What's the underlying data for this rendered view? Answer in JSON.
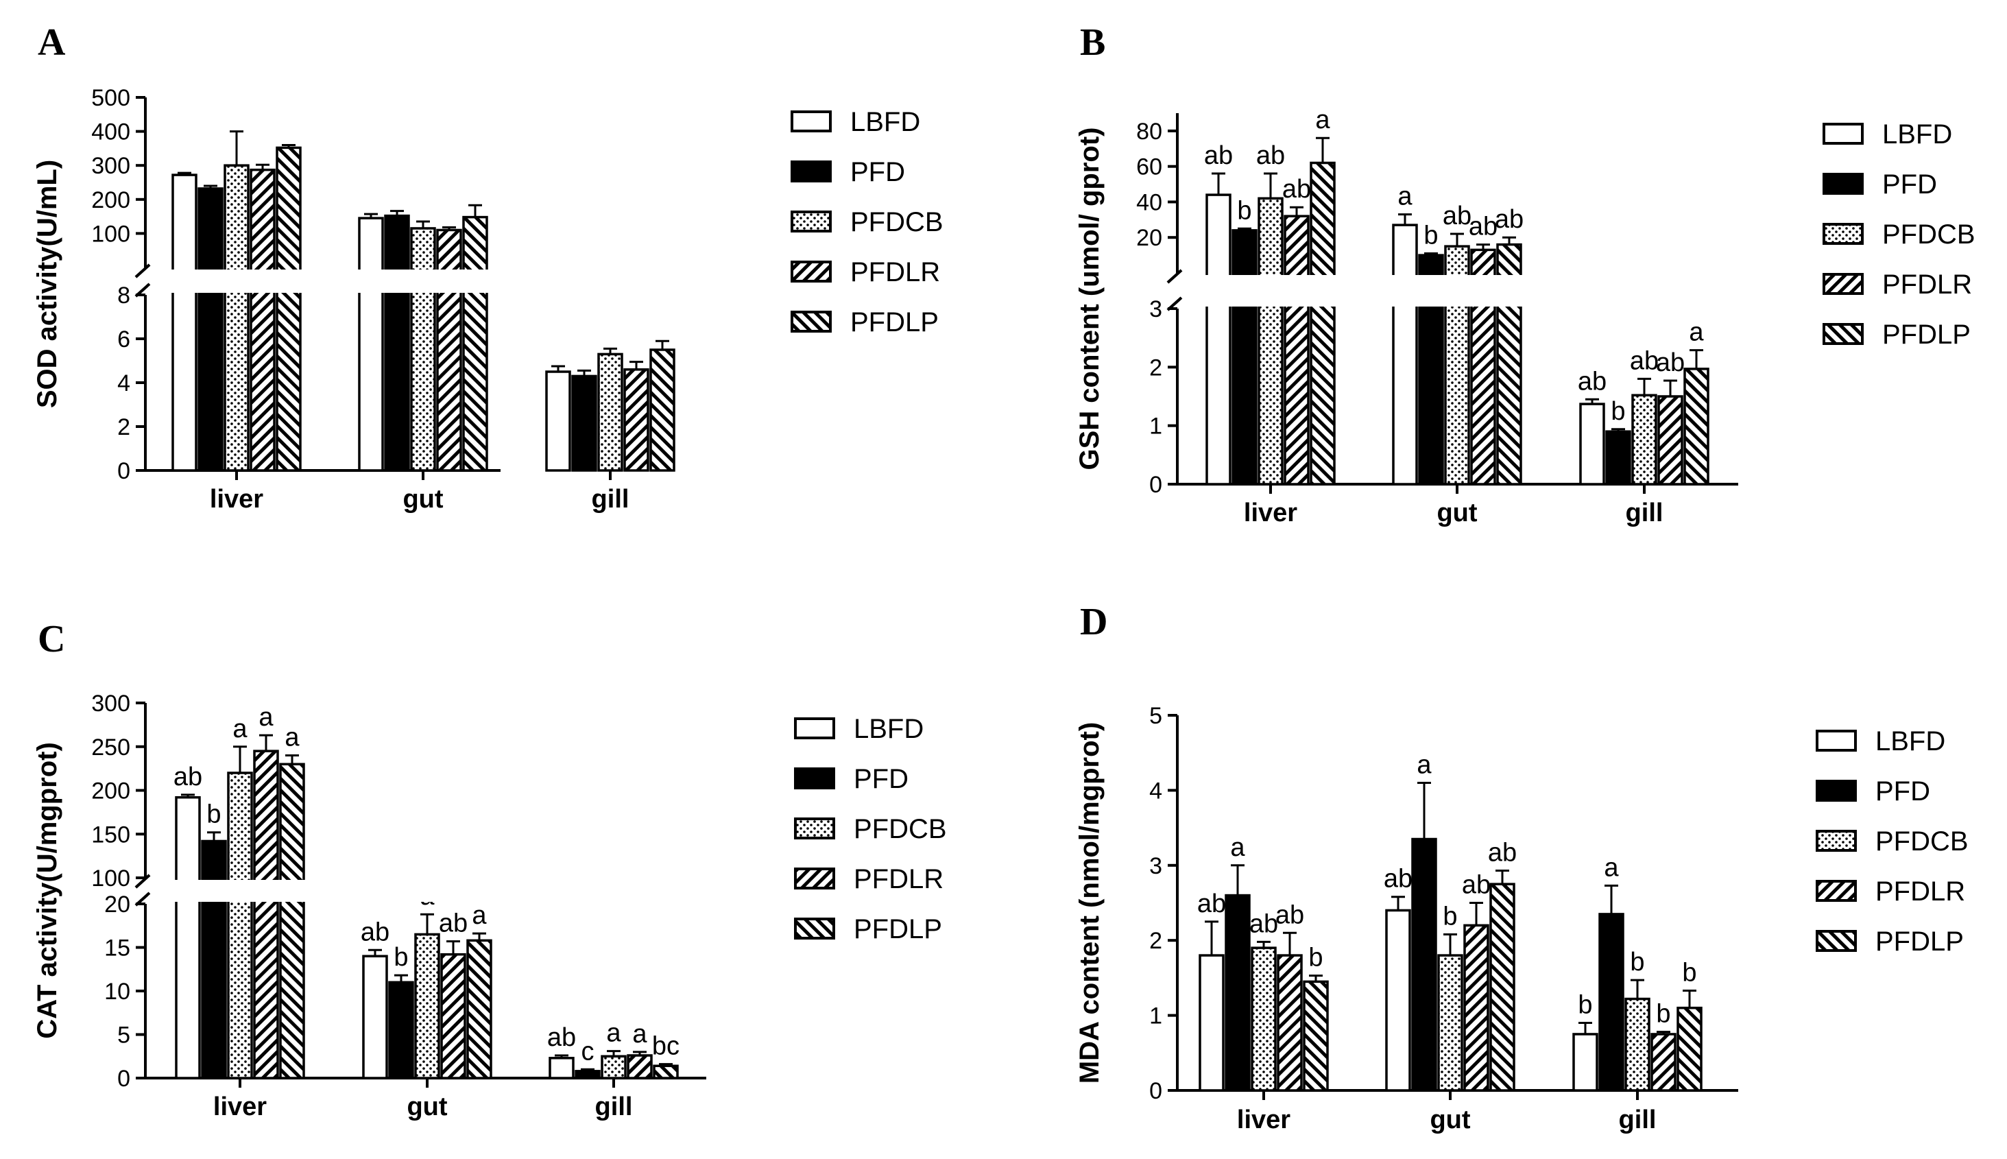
{
  "chart_data": [
    {
      "type": "bar",
      "panel": "A",
      "categories": [
        "liver",
        "gut",
        "gill"
      ],
      "ylabel": "SOD activity(U/mL)",
      "broken_axis": {
        "lower": [
          0,
          8
        ],
        "upper": [
          0,
          500
        ]
      },
      "lower_ticks": [
        "0",
        "2",
        "4",
        "6",
        "8"
      ],
      "upper_ticks": [
        "100",
        "200",
        "300",
        "400",
        "500"
      ],
      "series": [
        {
          "name": "LBFD",
          "pattern": "white",
          "values": [
            272,
            145,
            4.5
          ],
          "errors": [
            6,
            12,
            0.25
          ],
          "letters": [
            "",
            "",
            ""
          ]
        },
        {
          "name": "PFD",
          "pattern": "black",
          "values": [
            232,
            152,
            4.3
          ],
          "errors": [
            8,
            14,
            0.25
          ],
          "letters": [
            "",
            "",
            ""
          ]
        },
        {
          "name": "PFDCB",
          "pattern": "dots",
          "values": [
            300,
            115,
            5.3
          ],
          "errors": [
            100,
            20,
            0.25
          ],
          "letters": [
            "",
            "",
            ""
          ]
        },
        {
          "name": "PFDLR",
          "pattern": "hatch",
          "values": [
            287,
            110,
            4.6
          ],
          "errors": [
            15,
            8,
            0.35
          ],
          "letters": [
            "",
            "",
            ""
          ]
        },
        {
          "name": "PFDLP",
          "pattern": "hatch2",
          "values": [
            352,
            148,
            5.5
          ],
          "errors": [
            8,
            35,
            0.4
          ],
          "letters": [
            "",
            "",
            ""
          ]
        }
      ]
    },
    {
      "type": "bar",
      "panel": "B",
      "categories": [
        "liver",
        "gut",
        "gill"
      ],
      "ylabel": "GSH content (umol/ gprot)",
      "broken_axis": {
        "lower": [
          0,
          3
        ],
        "upper": [
          0,
          90
        ]
      },
      "lower_ticks": [
        "0",
        "1",
        "2",
        "3"
      ],
      "upper_ticks": [
        "20",
        "40",
        "60",
        "80"
      ],
      "series": [
        {
          "name": "LBFD",
          "pattern": "white",
          "values": [
            44,
            27,
            1.37
          ],
          "errors": [
            12,
            6,
            0.08
          ],
          "letters": [
            "ab",
            "a",
            "ab"
          ]
        },
        {
          "name": "PFD",
          "pattern": "black",
          "values": [
            24,
            10,
            0.9
          ],
          "errors": [
            1,
            1,
            0.04
          ],
          "letters": [
            "b",
            "b",
            "b"
          ]
        },
        {
          "name": "PFDCB",
          "pattern": "dots",
          "values": [
            42,
            15,
            1.52
          ],
          "errors": [
            14,
            7,
            0.28
          ],
          "letters": [
            "ab",
            "ab",
            "ab"
          ]
        },
        {
          "name": "PFDLR",
          "pattern": "hatch",
          "values": [
            32,
            13,
            1.5
          ],
          "errors": [
            5,
            3,
            0.27
          ],
          "letters": [
            "ab",
            "ab",
            "ab"
          ]
        },
        {
          "name": "PFDLP",
          "pattern": "hatch2",
          "values": [
            62,
            16,
            1.97
          ],
          "errors": [
            14,
            4,
            0.32
          ],
          "letters": [
            "a",
            "ab",
            "a"
          ]
        }
      ]
    },
    {
      "type": "bar",
      "panel": "C",
      "categories": [
        "liver",
        "gut",
        "gill"
      ],
      "ylabel": "CAT activity(U/mgprot)",
      "broken_axis": {
        "lower": [
          0,
          20
        ],
        "upper": [
          100,
          300
        ]
      },
      "lower_ticks": [
        "0",
        "5",
        "10",
        "15",
        "20"
      ],
      "upper_ticks": [
        "100",
        "150",
        "200",
        "250",
        "300"
      ],
      "series": [
        {
          "name": "LBFD",
          "pattern": "white",
          "values": [
            192,
            14,
            2.3
          ],
          "errors": [
            3,
            0.7,
            0.3
          ],
          "letters": [
            "ab",
            "ab",
            "ab"
          ]
        },
        {
          "name": "PFD",
          "pattern": "black",
          "values": [
            142,
            11,
            0.8
          ],
          "errors": [
            10,
            0.8,
            0.2
          ],
          "letters": [
            "b",
            "b",
            "c"
          ]
        },
        {
          "name": "PFDCB",
          "pattern": "dots",
          "values": [
            220,
            16.5,
            2.5
          ],
          "errors": [
            30,
            2.3,
            0.6
          ],
          "letters": [
            "a",
            "a",
            "a"
          ]
        },
        {
          "name": "PFDLR",
          "pattern": "hatch",
          "values": [
            245,
            14.2,
            2.6
          ],
          "errors": [
            18,
            1.5,
            0.4
          ],
          "letters": [
            "a",
            "ab",
            "a"
          ]
        },
        {
          "name": "PFDLP",
          "pattern": "hatch2",
          "values": [
            230,
            15.8,
            1.4
          ],
          "errors": [
            10,
            0.8,
            0.2
          ],
          "letters": [
            "a",
            "a",
            "bc"
          ]
        }
      ]
    },
    {
      "type": "bar",
      "panel": "D",
      "categories": [
        "liver",
        "gut",
        "gill"
      ],
      "ylabel": "MDA content (nmol/mgprot)",
      "ylim": [
        0,
        5
      ],
      "ticks": [
        "0",
        "1",
        "2",
        "3",
        "4",
        "5"
      ],
      "series": [
        {
          "name": "LBFD",
          "pattern": "white",
          "values": [
            1.8,
            2.4,
            0.75
          ],
          "errors": [
            0.45,
            0.18,
            0.15
          ],
          "letters": [
            "ab",
            "ab",
            "b"
          ]
        },
        {
          "name": "PFD",
          "pattern": "black",
          "values": [
            2.6,
            3.35,
            2.35
          ],
          "errors": [
            0.4,
            0.75,
            0.38
          ],
          "letters": [
            "a",
            "a",
            "a"
          ]
        },
        {
          "name": "PFDCB",
          "pattern": "dots",
          "values": [
            1.9,
            1.8,
            1.22
          ],
          "errors": [
            0.08,
            0.28,
            0.25
          ],
          "letters": [
            "ab",
            "b",
            "b"
          ]
        },
        {
          "name": "PFDLR",
          "pattern": "hatch",
          "values": [
            1.8,
            2.2,
            0.75
          ],
          "errors": [
            0.3,
            0.3,
            0.03
          ],
          "letters": [
            "ab",
            "ab",
            "b"
          ]
        },
        {
          "name": "PFDLP",
          "pattern": "hatch2",
          "values": [
            1.45,
            2.75,
            1.1
          ],
          "errors": [
            0.08,
            0.18,
            0.23
          ],
          "letters": [
            "b",
            "ab",
            "b"
          ]
        }
      ]
    }
  ]
}
